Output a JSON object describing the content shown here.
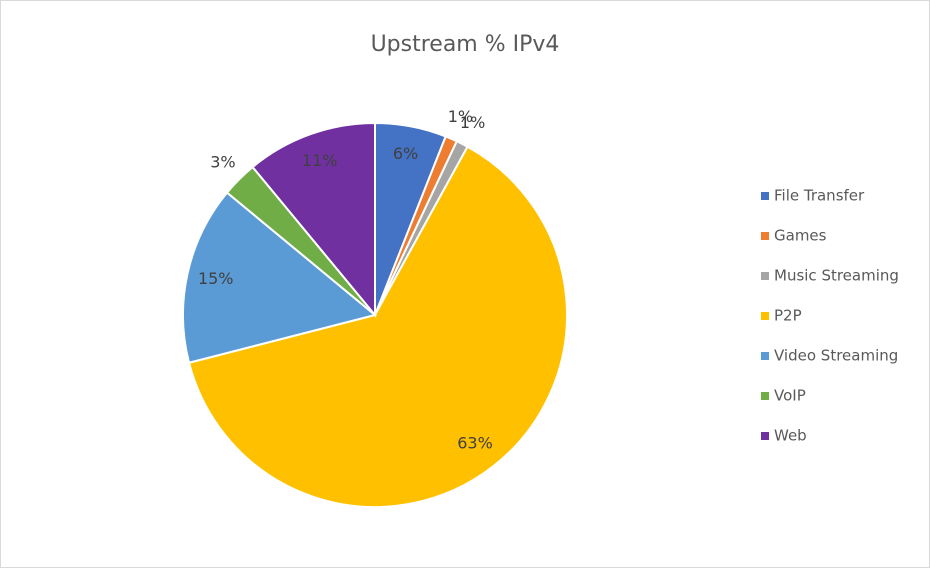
{
  "chart_data": {
    "type": "pie",
    "title": "Upstream % IPv4",
    "categories": [
      "File Transfer",
      "Games",
      "Music Streaming",
      "P2P",
      "Video Streaming",
      "VoIP",
      "Web"
    ],
    "values": [
      6,
      1,
      1,
      63,
      15,
      3,
      11
    ],
    "value_labels": [
      "6%",
      "1%",
      "1%",
      "63%",
      "15%",
      "3%",
      "11%"
    ],
    "colors": [
      "#4472c4",
      "#ed7d31",
      "#a5a5a5",
      "#ffc000",
      "#5b9bd5",
      "#70ad47",
      "#7030a0"
    ],
    "legend": "right"
  }
}
